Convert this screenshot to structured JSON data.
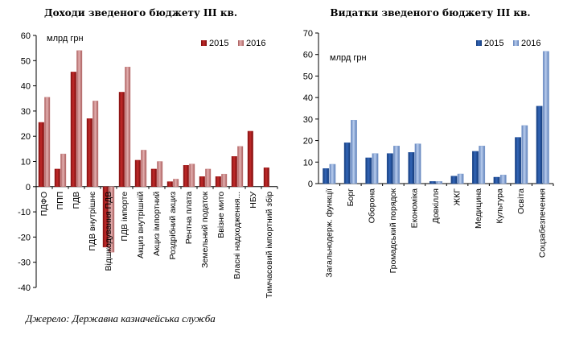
{
  "chart_data": [
    {
      "type": "bar",
      "title": "Доходи зведеного бюджету ІІІ кв.",
      "ylabel": "млрд грн",
      "ylim": [
        -40,
        60
      ],
      "yticks": [
        -40,
        -30,
        -20,
        -10,
        0,
        10,
        20,
        30,
        40,
        50,
        60
      ],
      "categories": [
        "ПДФО",
        "ППП",
        "ПДВ",
        "ПДВ внутрішнє",
        "Відшкодування ПДВ",
        "ПДВ імпорте",
        "Акциз внутрішній",
        "Акциз імпортний",
        "Роздрібний акциз",
        "Рентна плата",
        "Земельний податок",
        "Ввізне мито",
        "Власні надходження...",
        "НБУ",
        "Тимчасовий імпортний збір"
      ],
      "series": [
        {
          "name": "2015",
          "values": [
            25.5,
            7,
            45.5,
            27,
            -24,
            37.5,
            10.5,
            7,
            2,
            8.5,
            4,
            4,
            12,
            22,
            7.5
          ],
          "color": "#a31919"
        },
        {
          "name": "2016",
          "values": [
            35.5,
            13,
            54,
            34,
            -26,
            47.5,
            14.5,
            10,
            3,
            9,
            7,
            5,
            16,
            null,
            null
          ],
          "color": "#c98282"
        }
      ],
      "legend": "top-right",
      "grid": false
    },
    {
      "type": "bar",
      "title": "Видатки зведеного бюджету ІІІ кв.",
      "ylabel": "млрд грн",
      "ylim": [
        0,
        70
      ],
      "yticks": [
        0,
        10,
        20,
        30,
        40,
        50,
        60,
        70
      ],
      "categories": [
        "Загальнодерж. функції",
        "Борг",
        "Оборона",
        "Громадський порядок",
        "Економіка",
        "Довкілля",
        "ЖКГ",
        "Медицина",
        "Культура",
        "Освіта",
        "Соцзабезпечення"
      ],
      "series": [
        {
          "name": "2015",
          "values": [
            7,
            19,
            12,
            14,
            14.5,
            1,
            3.5,
            15,
            3,
            21.5,
            36
          ],
          "color": "#1f4e9c"
        },
        {
          "name": "2016",
          "values": [
            9,
            29.5,
            14,
            17.5,
            18.5,
            1,
            4.5,
            17.5,
            4,
            27,
            61.5
          ],
          "color": "#7f9fd1"
        }
      ],
      "legend": "top-right",
      "grid": false
    }
  ],
  "source": "Джерело: Державна казначейська служба"
}
